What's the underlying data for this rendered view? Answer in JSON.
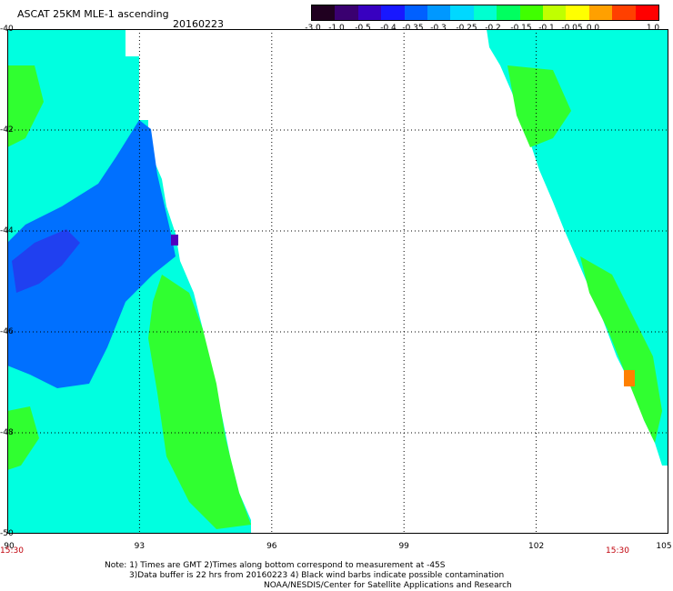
{
  "header": {
    "title": "ASCAT 25KM MLE-1 ascending",
    "date": "20160223"
  },
  "colorbar": {
    "labels": [
      "-3.0",
      "-1.0",
      "-0.5",
      "-0.4",
      "-0.35",
      "-0.3",
      "-0.25",
      "-0.2",
      "-0.15",
      "-0.1",
      "-0.05",
      "0.0",
      "1.0"
    ],
    "colors": [
      "#200020",
      "#3a0070",
      "#3800c0",
      "#1818ff",
      "#0060ff",
      "#0098ff",
      "#00d8ff",
      "#00ffd0",
      "#00ff60",
      "#40ff00",
      "#c0ff00",
      "#ffff00",
      "#ffa000",
      "#ff4000",
      "#ff0000"
    ]
  },
  "map": {
    "lon_ticks": [
      "90",
      "93",
      "96",
      "99",
      "102",
      "105"
    ],
    "lat_ticks": [
      "-40",
      "-42",
      "-44",
      "-46",
      "-48",
      "-50"
    ],
    "time_left": "15:30",
    "time_right": "15:30",
    "swath_colors": {
      "cyan": "#00ffe0",
      "blue": "#0070ff",
      "deep_blue": "#2040f0",
      "green": "#30ff30",
      "purple": "#5000c0",
      "orange": "#ff8000"
    }
  },
  "notes": {
    "line1": "Note: 1) Times are GMT 2)Times along bottom correspond to measurement at -45S",
    "line2": "3)Data buffer is 22 hrs from 20160223 4) Black wind barbs indicate possible contamination",
    "line3": "NOAA/NESDIS/Center for Satellite Applications and Research"
  }
}
